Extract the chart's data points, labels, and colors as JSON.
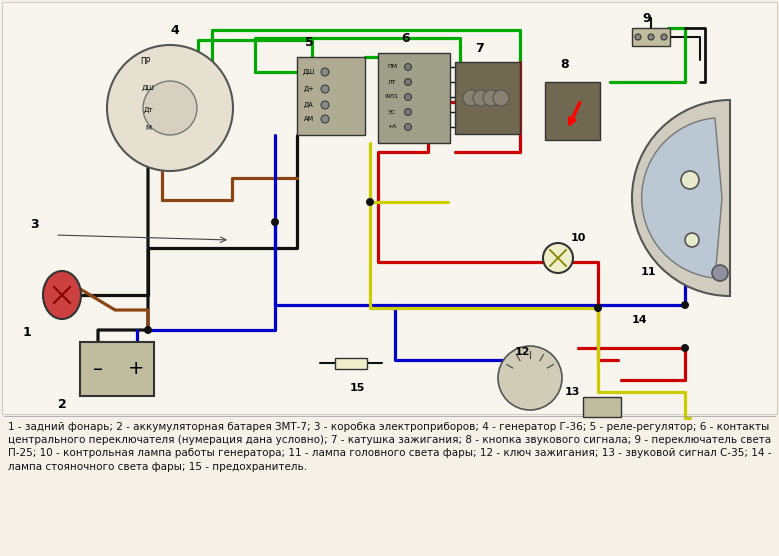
{
  "bg_color": "#f5f0e8",
  "caption_text": "1 - задний фонарь; 2 - аккумуляторная батарея ЗМТ-7; 3 - коробка электроприборов; 4 - генератор Г-36; 5 - реле-регулятор; 6 - контакты\nцентрального переключателя (нумерация дана условно); 7 - катушка зажигания; 8 - кнопка звукового сигнала; 9 - переключатель света\nП-25; 10 - контрольная лампа работы генератора; 11 - лампа головного света фары; 12 - ключ зажигания; 13 - звуковой сигнал С-35; 14 -\nлампа стояночного света фары; 15 - предохранитель.",
  "caption_fontsize": 7.5,
  "wire_green": "#00aa00",
  "wire_black": "#111111",
  "wire_brown": "#8B4513",
  "wire_blue": "#0000cc",
  "wire_red": "#cc0000",
  "wire_yellow": "#cccc00",
  "relay_labels": [
    [
      "ДШ",
      15
    ],
    [
      "Д+",
      32
    ],
    [
      "ДА",
      48
    ],
    [
      "АМ",
      62
    ]
  ],
  "switch_labels": [
    [
      "ПМ",
      14
    ],
    [
      "ЛТ",
      29
    ],
    [
      "ФЛ1",
      44
    ],
    [
      "ЗС",
      59
    ],
    [
      "+А",
      74
    ]
  ]
}
